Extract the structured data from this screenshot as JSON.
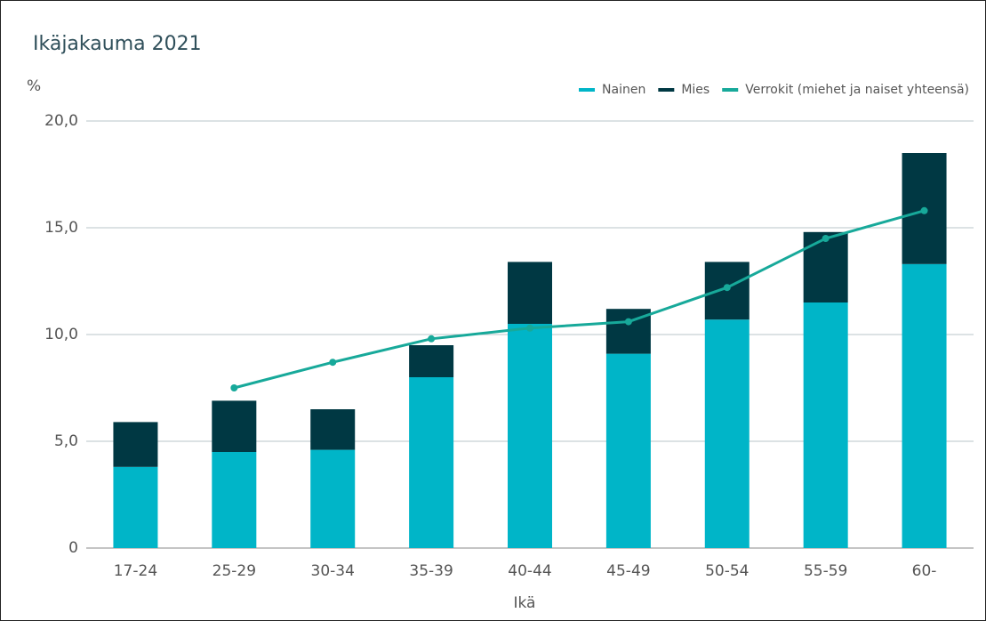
{
  "chart_data": {
    "type": "stacked_bar_line",
    "title": "Ikäjakauma 2021",
    "y_label": "%",
    "x_label": "Ikä",
    "categories": [
      "17-24",
      "25-29",
      "30-34",
      "35-39",
      "40-44",
      "45-49",
      "50-54",
      "55-59",
      "60-"
    ],
    "series": [
      {
        "name": "Nainen",
        "color": "#00b5c8",
        "values": [
          3.8,
          4.5,
          4.6,
          8.0,
          10.5,
          9.1,
          10.7,
          11.5,
          13.3
        ]
      },
      {
        "name": "Mies",
        "color": "#003843",
        "values": [
          2.1,
          2.4,
          1.9,
          1.5,
          2.9,
          2.1,
          2.7,
          3.3,
          5.2
        ]
      },
      {
        "name": "Verrokit (miehet ja naiset yhteensä)",
        "color": "#17a99a",
        "type": "line",
        "values": [
          null,
          7.5,
          8.7,
          9.8,
          10.3,
          10.6,
          12.2,
          14.5,
          15.8
        ]
      }
    ],
    "ylim": [
      0,
      20
    ],
    "yticks": [
      0,
      {
        "value": 5,
        "label": "5,0"
      },
      {
        "value": 10,
        "label": "10,0"
      },
      {
        "value": 15,
        "label": "15,0"
      },
      {
        "value": 20,
        "label": "20,0"
      }
    ],
    "grid": true,
    "legend": "top-right"
  }
}
